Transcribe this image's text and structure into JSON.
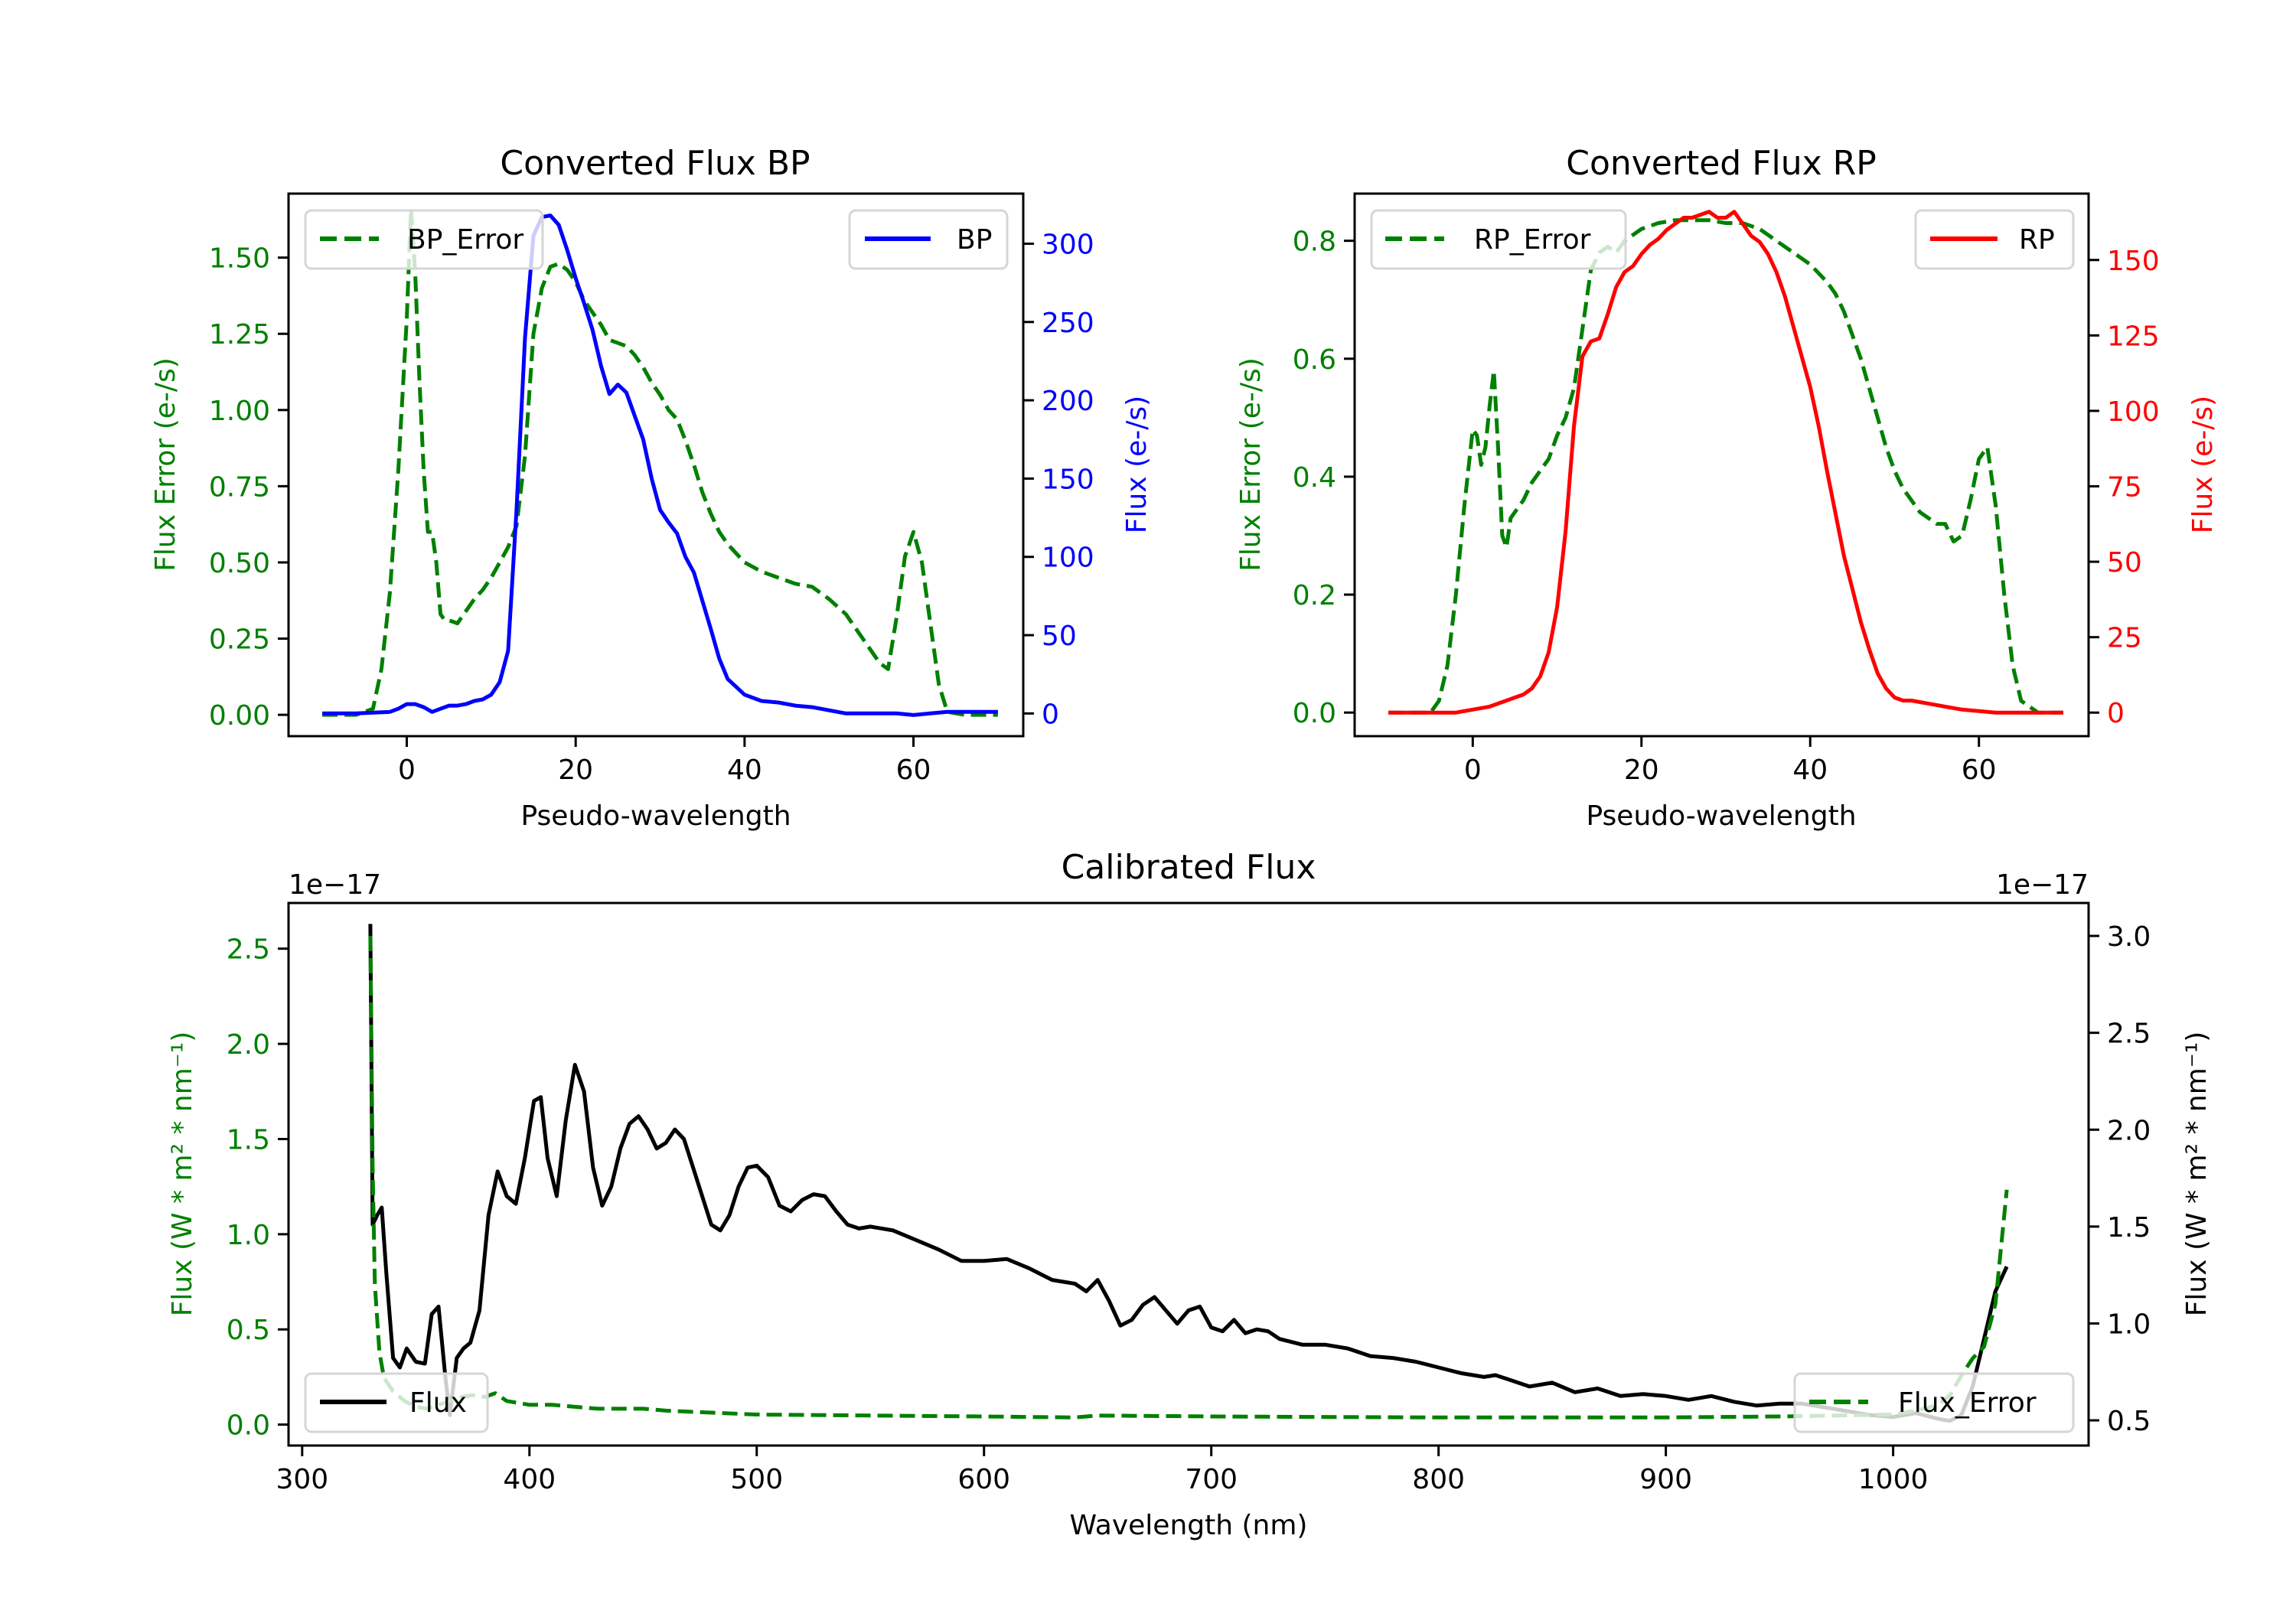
{
  "colors": {
    "error": "#008000",
    "bp": "#0000ff",
    "rp": "#ff0000",
    "flux": "#000000",
    "axis": "#000000"
  },
  "chart_data": [
    {
      "id": "bp",
      "type": "line",
      "title": "Converted Flux BP",
      "xlabel": "Pseudo-wavelength",
      "ylabel_left": "Flux Error (e-/s)",
      "ylabel_right": "Flux (e-/s)",
      "xlim": [
        -14,
        73
      ],
      "ylim_left": [
        -0.07,
        1.71
      ],
      "ylim_right": [
        -14.5,
        332
      ],
      "xticks": [
        0,
        20,
        40,
        60
      ],
      "yticks_left": [
        "0.00",
        "0.25",
        "0.50",
        "0.75",
        "1.00",
        "1.25",
        "1.50"
      ],
      "yticks_right": [
        "0",
        "50",
        "100",
        "150",
        "200",
        "250",
        "300"
      ],
      "legend_left": {
        "label": "BP_Error",
        "placement": "upper-left"
      },
      "legend_right": {
        "label": "BP",
        "placement": "upper-right"
      },
      "series": [
        {
          "name": "BP_Error",
          "axis": "left",
          "style": "dashed",
          "color_key": "error",
          "x": [
            -10,
            -6,
            -4,
            -3,
            -2,
            -1,
            0,
            0.5,
            1,
            1.5,
            2,
            2.5,
            3,
            3.5,
            4,
            4.5,
            5,
            6,
            7,
            8,
            9,
            10,
            11,
            12,
            13,
            14,
            15,
            16,
            17,
            18,
            19,
            20,
            21,
            22,
            23,
            24,
            25,
            26,
            27,
            28,
            29,
            30,
            31,
            32,
            33,
            34,
            35,
            36,
            37,
            38,
            39,
            40,
            42,
            44,
            46,
            48,
            50,
            52,
            54,
            56,
            57,
            58,
            59,
            60,
            61,
            62,
            63,
            64,
            66,
            70
          ],
          "values": [
            0,
            0,
            0.02,
            0.15,
            0.4,
            0.8,
            1.3,
            1.66,
            1.45,
            1.1,
            0.8,
            0.6,
            0.6,
            0.5,
            0.33,
            0.31,
            0.31,
            0.3,
            0.34,
            0.38,
            0.41,
            0.45,
            0.5,
            0.55,
            0.62,
            0.85,
            1.25,
            1.4,
            1.47,
            1.48,
            1.46,
            1.42,
            1.36,
            1.32,
            1.28,
            1.23,
            1.22,
            1.21,
            1.18,
            1.14,
            1.09,
            1.05,
            1.0,
            0.97,
            0.9,
            0.82,
            0.73,
            0.66,
            0.6,
            0.56,
            0.53,
            0.5,
            0.47,
            0.45,
            0.43,
            0.42,
            0.38,
            0.33,
            0.25,
            0.17,
            0.15,
            0.32,
            0.52,
            0.6,
            0.5,
            0.3,
            0.1,
            0.01,
            0,
            0
          ]
        },
        {
          "name": "BP",
          "axis": "right",
          "style": "solid",
          "color_key": "bp",
          "x": [
            -10,
            -6,
            -4,
            -2,
            -1,
            0,
            1,
            2,
            3,
            4,
            5,
            6,
            7,
            8,
            9,
            10,
            11,
            12,
            13,
            14,
            15,
            16,
            17,
            18,
            19,
            20,
            21,
            22,
            23,
            24,
            25,
            26,
            27,
            28,
            29,
            30,
            31,
            32,
            33,
            34,
            35,
            36,
            37,
            38,
            40,
            42,
            44,
            46,
            48,
            50,
            52,
            54,
            56,
            58,
            60,
            62,
            64,
            66,
            70
          ],
          "values": [
            0,
            0,
            0.5,
            1,
            3,
            6,
            6,
            4,
            1,
            3,
            5,
            5,
            6,
            8,
            9,
            12,
            20,
            40,
            130,
            240,
            305,
            317,
            318,
            312,
            296,
            278,
            262,
            245,
            222,
            204,
            210,
            205,
            190,
            175,
            150,
            130,
            122,
            115,
            100,
            90,
            72,
            54,
            35,
            22,
            12,
            8,
            7,
            5,
            4,
            2,
            0,
            0,
            0,
            0,
            -1,
            0,
            1,
            1,
            1
          ]
        }
      ]
    },
    {
      "id": "rp",
      "type": "line",
      "title": "Converted Flux RP",
      "xlabel": "Pseudo-wavelength",
      "ylabel_left": "Flux Error (e-/s)",
      "ylabel_right": "Flux (e-/s)",
      "xlim": [
        -14,
        73
      ],
      "ylim_left": [
        -0.04,
        0.88
      ],
      "ylim_right": [
        -7.8,
        172
      ],
      "xticks": [
        0,
        20,
        40,
        60
      ],
      "yticks_left": [
        "0.0",
        "0.2",
        "0.4",
        "0.6",
        "0.8"
      ],
      "yticks_right": [
        "0",
        "25",
        "50",
        "75",
        "100",
        "125",
        "150"
      ],
      "legend_left": {
        "label": "RP_Error",
        "placement": "upper-left"
      },
      "legend_right": {
        "label": "RP",
        "placement": "upper-right"
      },
      "series": [
        {
          "name": "RP_Error",
          "axis": "left",
          "style": "dashed",
          "color_key": "error",
          "x": [
            -10,
            -5,
            -4,
            -3,
            -2,
            -1,
            0,
            0.5,
            1,
            1.5,
            2,
            2.5,
            3,
            3.5,
            4,
            4.5,
            5,
            6,
            7,
            8,
            9,
            10,
            11,
            12,
            13,
            14,
            15,
            16,
            17,
            18,
            19,
            20,
            22,
            24,
            26,
            28,
            30,
            32,
            34,
            35,
            36,
            37,
            38,
            40,
            42,
            43,
            44,
            45,
            46,
            47,
            48,
            49,
            50,
            51,
            52,
            53,
            54,
            55,
            56,
            57,
            58,
            59,
            60,
            61,
            62,
            63,
            64,
            65,
            67,
            70
          ],
          "values": [
            0,
            0,
            0.02,
            0.08,
            0.2,
            0.35,
            0.48,
            0.47,
            0.42,
            0.45,
            0.52,
            0.58,
            0.45,
            0.3,
            0.28,
            0.33,
            0.34,
            0.36,
            0.39,
            0.41,
            0.43,
            0.47,
            0.5,
            0.55,
            0.65,
            0.75,
            0.78,
            0.79,
            0.78,
            0.8,
            0.81,
            0.82,
            0.83,
            0.835,
            0.835,
            0.835,
            0.83,
            0.83,
            0.82,
            0.81,
            0.8,
            0.79,
            0.78,
            0.76,
            0.73,
            0.71,
            0.68,
            0.64,
            0.6,
            0.55,
            0.5,
            0.45,
            0.41,
            0.38,
            0.36,
            0.34,
            0.33,
            0.32,
            0.32,
            0.29,
            0.3,
            0.36,
            0.43,
            0.45,
            0.35,
            0.2,
            0.08,
            0.02,
            0,
            0
          ]
        },
        {
          "name": "RP",
          "axis": "right",
          "style": "solid",
          "color_key": "rp",
          "x": [
            -10,
            -4,
            -2,
            0,
            2,
            3,
            4,
            5,
            6,
            7,
            8,
            9,
            10,
            11,
            12,
            13,
            14,
            15,
            16,
            17,
            18,
            19,
            20,
            21,
            22,
            23,
            24,
            25,
            26,
            27,
            28,
            29,
            30,
            31,
            32,
            33,
            34,
            35,
            36,
            37,
            38,
            39,
            40,
            41,
            42,
            43,
            44,
            45,
            46,
            47,
            48,
            49,
            50,
            51,
            52,
            54,
            56,
            58,
            60,
            62,
            64,
            66,
            70
          ],
          "values": [
            0,
            0,
            0,
            1,
            2,
            3,
            4,
            5,
            6,
            8,
            12,
            20,
            35,
            60,
            95,
            118,
            123,
            124,
            132,
            141,
            146,
            148,
            152,
            155,
            157,
            160,
            162,
            164,
            164,
            165,
            166,
            164,
            164,
            166,
            162,
            158,
            156,
            152,
            146,
            138,
            128,
            118,
            108,
            95,
            80,
            66,
            52,
            41,
            30,
            21,
            13,
            8,
            5,
            4,
            4,
            3,
            2,
            1,
            0.5,
            0,
            0,
            0,
            0
          ]
        }
      ]
    },
    {
      "id": "calibrated",
      "type": "line",
      "title": "Calibrated Flux",
      "xlabel": "Wavelength (nm)",
      "ylabel_left": "Flux (W * m² * nm⁻¹)",
      "ylabel_right": "Flux (W * m² * nm⁻¹)",
      "offset_left": "1e−17",
      "offset_right": "1e−17",
      "xlim": [
        294,
        1086
      ],
      "ylim_left": [
        -0.11,
        2.74
      ],
      "ylim_right": [
        0.37,
        3.17
      ],
      "xticks": [
        300,
        400,
        500,
        600,
        700,
        800,
        900,
        1000
      ],
      "yticks_left": [
        "0.0",
        "0.5",
        "1.0",
        "1.5",
        "2.0",
        "2.5"
      ],
      "yticks_right": [
        "0.5",
        "1.0",
        "1.5",
        "2.0",
        "2.5",
        "3.0"
      ],
      "legend_left": {
        "label": "Flux",
        "placement": "lower-left"
      },
      "legend_right": {
        "label": "Flux_Error",
        "placement": "lower-right"
      },
      "series": [
        {
          "name": "Flux",
          "axis": "left",
          "style": "solid",
          "color_key": "flux",
          "x": [
            330,
            331,
            333,
            335,
            337,
            340,
            343,
            346,
            350,
            354,
            357,
            360,
            363,
            365,
            368,
            371,
            374,
            378,
            382,
            386,
            390,
            394,
            398,
            402,
            405,
            408,
            412,
            416,
            420,
            424,
            428,
            432,
            436,
            440,
            444,
            448,
            452,
            456,
            460,
            464,
            468,
            472,
            476,
            480,
            484,
            488,
            492,
            496,
            500,
            505,
            510,
            515,
            520,
            525,
            530,
            535,
            540,
            545,
            550,
            560,
            570,
            580,
            590,
            600,
            610,
            620,
            630,
            640,
            645,
            650,
            655,
            660,
            665,
            670,
            675,
            680,
            685,
            690,
            695,
            700,
            705,
            710,
            715,
            720,
            725,
            730,
            740,
            750,
            760,
            770,
            780,
            790,
            800,
            810,
            820,
            825,
            830,
            840,
            850,
            860,
            870,
            880,
            890,
            900,
            910,
            920,
            930,
            940,
            950,
            960,
            970,
            980,
            990,
            1000,
            1010,
            1020,
            1025,
            1030,
            1035,
            1040,
            1045,
            1050
          ],
          "values": [
            2.63,
            1.05,
            1.1,
            1.14,
            0.8,
            0.35,
            0.3,
            0.4,
            0.33,
            0.32,
            0.58,
            0.62,
            0.25,
            0.05,
            0.35,
            0.4,
            0.43,
            0.6,
            1.1,
            1.33,
            1.2,
            1.16,
            1.4,
            1.7,
            1.72,
            1.4,
            1.2,
            1.6,
            1.89,
            1.75,
            1.35,
            1.15,
            1.25,
            1.45,
            1.58,
            1.62,
            1.55,
            1.45,
            1.48,
            1.55,
            1.5,
            1.35,
            1.2,
            1.05,
            1.02,
            1.1,
            1.25,
            1.35,
            1.36,
            1.3,
            1.15,
            1.12,
            1.18,
            1.21,
            1.2,
            1.12,
            1.05,
            1.03,
            1.04,
            1.02,
            0.97,
            0.92,
            0.86,
            0.86,
            0.87,
            0.82,
            0.76,
            0.74,
            0.7,
            0.76,
            0.65,
            0.52,
            0.55,
            0.63,
            0.67,
            0.6,
            0.53,
            0.6,
            0.62,
            0.51,
            0.49,
            0.55,
            0.48,
            0.5,
            0.49,
            0.45,
            0.42,
            0.42,
            0.4,
            0.36,
            0.35,
            0.33,
            0.3,
            0.27,
            0.25,
            0.26,
            0.24,
            0.2,
            0.22,
            0.17,
            0.19,
            0.15,
            0.16,
            0.15,
            0.13,
            0.15,
            0.12,
            0.1,
            0.11,
            0.11,
            0.09,
            0.07,
            0.05,
            0.04,
            0.06,
            0.03,
            0.02,
            0.05,
            0.2,
            0.45,
            0.7,
            0.83
          ]
        },
        {
          "name": "Flux_Error",
          "axis": "right",
          "style": "dashed",
          "color_key": "error",
          "x": [
            330,
            331,
            332,
            334,
            336,
            340,
            345,
            350,
            355,
            360,
            365,
            370,
            375,
            380,
            385,
            390,
            395,
            400,
            410,
            420,
            430,
            440,
            450,
            460,
            480,
            500,
            550,
            600,
            640,
            650,
            700,
            800,
            900,
            950,
            1000,
            1010,
            1020,
            1025,
            1030,
            1035,
            1040,
            1045,
            1050
          ],
          "values": [
            3.0,
            1.8,
            1.2,
            0.85,
            0.72,
            0.65,
            0.6,
            0.57,
            0.56,
            0.58,
            0.6,
            0.62,
            0.63,
            0.62,
            0.64,
            0.6,
            0.59,
            0.58,
            0.58,
            0.57,
            0.56,
            0.56,
            0.56,
            0.55,
            0.54,
            0.53,
            0.525,
            0.52,
            0.515,
            0.525,
            0.52,
            0.515,
            0.515,
            0.52,
            0.53,
            0.55,
            0.58,
            0.63,
            0.73,
            0.82,
            0.88,
            1.1,
            1.69
          ]
        }
      ]
    }
  ]
}
